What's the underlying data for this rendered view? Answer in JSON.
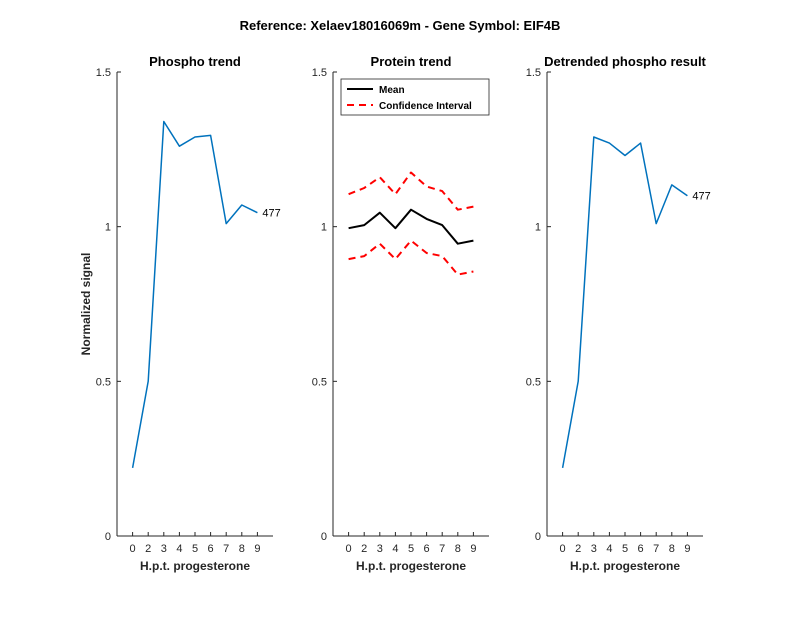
{
  "figure": {
    "suptitle": "Reference:  Xelaev18016069m - Gene Symbol:  EIF4B",
    "ylabel": "Normalized signal"
  },
  "colors": {
    "phospho": "#0072BD",
    "mean": "#000000",
    "ci": "#FF0000",
    "axis": "#262626"
  },
  "chart_data": [
    {
      "type": "line",
      "title": "Phospho trend",
      "xlabel": "H.p.t. progesterone",
      "ylabel": "Normalized signal",
      "xticks": [
        "0",
        "2",
        "3",
        "4",
        "5",
        "6",
        "7",
        "8",
        "9"
      ],
      "ylim": [
        0,
        1.5
      ],
      "yticks": [
        "0",
        "0.5",
        "1",
        "1.5"
      ],
      "series": [
        {
          "values": [
            0.22,
            0.5,
            1.34,
            1.26,
            1.29,
            1.295,
            1.01,
            1.07,
            1.045
          ]
        }
      ],
      "annotation": "477"
    },
    {
      "type": "line",
      "title": "Protein trend",
      "xlabel": "H.p.t. progesterone",
      "xticks": [
        "0",
        "2",
        "3",
        "4",
        "5",
        "6",
        "7",
        "8",
        "9"
      ],
      "ylim": [
        0,
        1.5
      ],
      "yticks": [
        "0",
        "0.5",
        "1",
        "1.5"
      ],
      "legend_position": "top-left",
      "series": [
        {
          "name": "Mean",
          "values": [
            0.995,
            1.005,
            1.045,
            0.995,
            1.055,
            1.025,
            1.005,
            0.945,
            0.955
          ]
        },
        {
          "name": "Confidence Interval",
          "values": [
            1.105,
            1.125,
            1.16,
            1.105,
            1.175,
            1.13,
            1.115,
            1.055,
            1.065
          ]
        },
        {
          "values": [
            0.895,
            0.905,
            0.945,
            0.895,
            0.955,
            0.915,
            0.905,
            0.845,
            0.855
          ]
        }
      ]
    },
    {
      "type": "line",
      "title": "Detrended phospho result",
      "xlabel": "H.p.t. progesterone",
      "xticks": [
        "0",
        "2",
        "3",
        "4",
        "5",
        "6",
        "7",
        "8",
        "9"
      ],
      "ylim": [
        0,
        1.5
      ],
      "yticks": [
        "0",
        "0.5",
        "1",
        "1.5"
      ],
      "series": [
        {
          "values": [
            0.22,
            0.5,
            1.29,
            1.27,
            1.23,
            1.27,
            1.01,
            1.135,
            1.1
          ]
        }
      ],
      "annotation": "477"
    }
  ]
}
